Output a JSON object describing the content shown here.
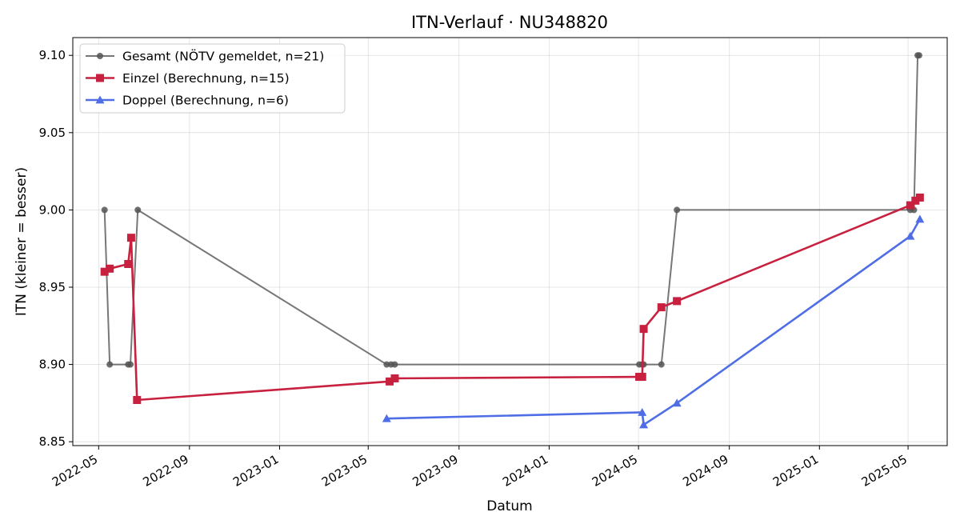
{
  "chart_data": {
    "type": "line",
    "title": "ITN-Verlauf · NU348820",
    "xlabel": "Datum",
    "ylabel": "ITN  (kleiner = besser)",
    "x_axis": "date",
    "xlim": [
      "2022-03-27",
      "2025-06-23"
    ],
    "ylim": [
      8.8475,
      9.1115
    ],
    "grid": true,
    "legend_position": "top-left",
    "x_ticks": [
      "2022-05",
      "2022-09",
      "2023-01",
      "2023-05",
      "2023-09",
      "2024-01",
      "2024-05",
      "2024-09",
      "2025-01",
      "2025-05"
    ],
    "y_ticks": [
      "8.85",
      "8.90",
      "8.95",
      "9.00",
      "9.05",
      "9.10"
    ],
    "series": [
      {
        "name": "Gesamt (NÖTV gemeldet, n=21)",
        "color": "#555555",
        "marker": "circle",
        "x": [
          "2022-05-09",
          "2022-05-16",
          "2022-06-10",
          "2022-06-13",
          "2022-06-23",
          "2023-05-26",
          "2023-06-01",
          "2023-06-06",
          "2024-05-02",
          "2024-05-06",
          "2024-05-08",
          "2024-06-01",
          "2024-06-22",
          "2025-05-04",
          "2025-05-09",
          "2025-05-14",
          "2025-05-16"
        ],
        "y": [
          9.0,
          8.9,
          8.9,
          8.9,
          9.0,
          8.9,
          8.9,
          8.9,
          8.9,
          8.9,
          8.9,
          8.9,
          9.0,
          9.0,
          9.0,
          9.1,
          9.1
        ]
      },
      {
        "name": "Einzel (Berechnung, n=15)",
        "color": "#c8203f",
        "marker": "square",
        "x": [
          "2022-05-09",
          "2022-05-16",
          "2022-06-10",
          "2022-06-14",
          "2022-06-22",
          "2023-05-30",
          "2023-06-06",
          "2024-05-02",
          "2024-05-06",
          "2024-05-08",
          "2024-06-01",
          "2024-06-22",
          "2025-05-04",
          "2025-05-11",
          "2025-05-17"
        ],
        "y": [
          8.96,
          8.962,
          8.965,
          8.982,
          8.877,
          8.889,
          8.891,
          8.892,
          8.892,
          8.923,
          8.937,
          8.941,
          9.003,
          9.006,
          9.008
        ]
      },
      {
        "name": "Doppel (Berechnung, n=6)",
        "color": "#4f6ee6",
        "marker": "triangle",
        "x": [
          "2023-05-26",
          "2024-05-06",
          "2024-05-08",
          "2024-06-22",
          "2025-05-04",
          "2025-05-17"
        ],
        "y": [
          8.865,
          8.869,
          8.861,
          8.875,
          8.983,
          8.994
        ]
      }
    ]
  }
}
